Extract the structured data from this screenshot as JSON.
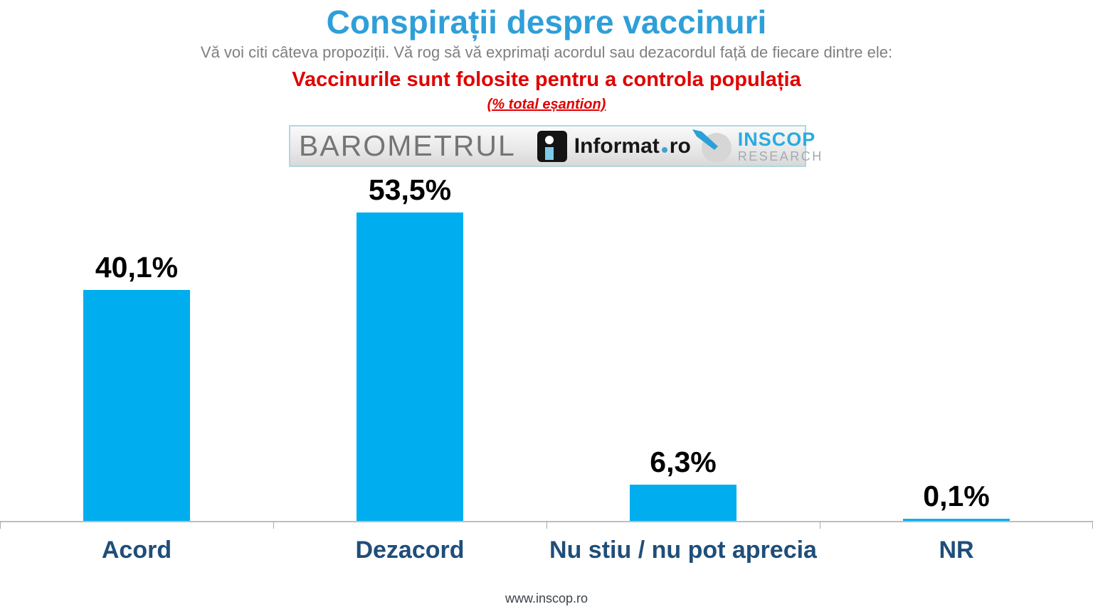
{
  "header": {
    "title": "Conspirații despre vaccinuri",
    "subtitle": "Vă voi citi câteva propoziții. Vă rog să vă exprimați acordul sau dezacordul față de fiecare dintre ele:",
    "statement": "Vaccinurile sunt folosite pentru a controla populația",
    "sample_note": "(% total eșantion)"
  },
  "logo_bar": {
    "barometrul": "BAROMETRUL",
    "informat_word": "Informat",
    "informat_tld": "ro",
    "inscop_name": "INSCOP",
    "inscop_sub": "RESEARCH"
  },
  "chart_data": {
    "type": "bar",
    "title": "Conspirații despre vaccinuri",
    "subtitle": "Vaccinurile sunt folosite pentru a controla populația (% total eșantion)",
    "categories": [
      "Acord",
      "Dezacord",
      "Nu stiu / nu pot aprecia",
      "NR"
    ],
    "values": [
      40.1,
      53.5,
      6.3,
      0.1
    ],
    "value_labels": [
      "40,1%",
      "53,5%",
      "6,3%",
      "0,1%"
    ],
    "xlabel": "",
    "ylabel": "",
    "ylim": [
      0,
      60
    ],
    "grid": false,
    "legend": false,
    "bar_color": "#00AEEF",
    "value_label_color": "#000000",
    "category_label_color": "#1F4E79"
  },
  "colors": {
    "title": "#2E9FD8",
    "subtitle": "#7F7F7F",
    "statement": "#E00000",
    "axis": "#BDBDBD",
    "inscop_blue": "#29ABE2"
  },
  "footer": {
    "website": "www.inscop.ro"
  }
}
